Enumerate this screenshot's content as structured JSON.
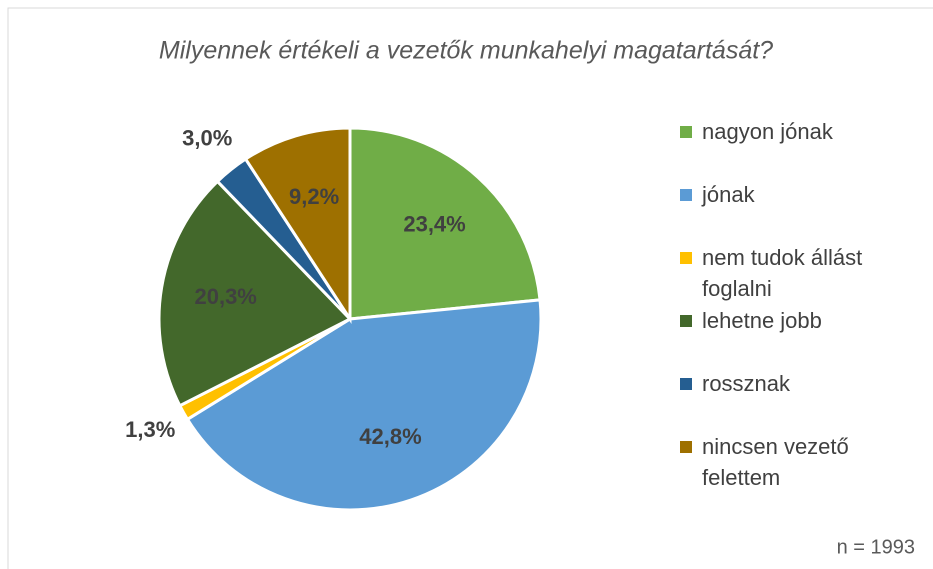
{
  "chart_data": {
    "type": "pie",
    "title": "Milyennek értékeli a vezetők munkahelyi magatartását?",
    "categories": [
      "nagyon jónak",
      "jónak",
      "nem tudok állást foglalni",
      "lehetne jobb",
      "rossznak",
      "nincsen vezető felettem"
    ],
    "values": [
      23.4,
      42.8,
      1.3,
      20.3,
      3.0,
      9.2
    ],
    "value_labels": [
      "23,4%",
      "42,8%",
      "1,3%",
      "20,3%",
      "3,0%",
      "9,2%"
    ],
    "colors": [
      "#70ad47",
      "#5b9bd5",
      "#ffc000",
      "#43682b",
      "#255e91",
      "#9e7000"
    ],
    "legend": "right",
    "note": "n = 1993"
  }
}
